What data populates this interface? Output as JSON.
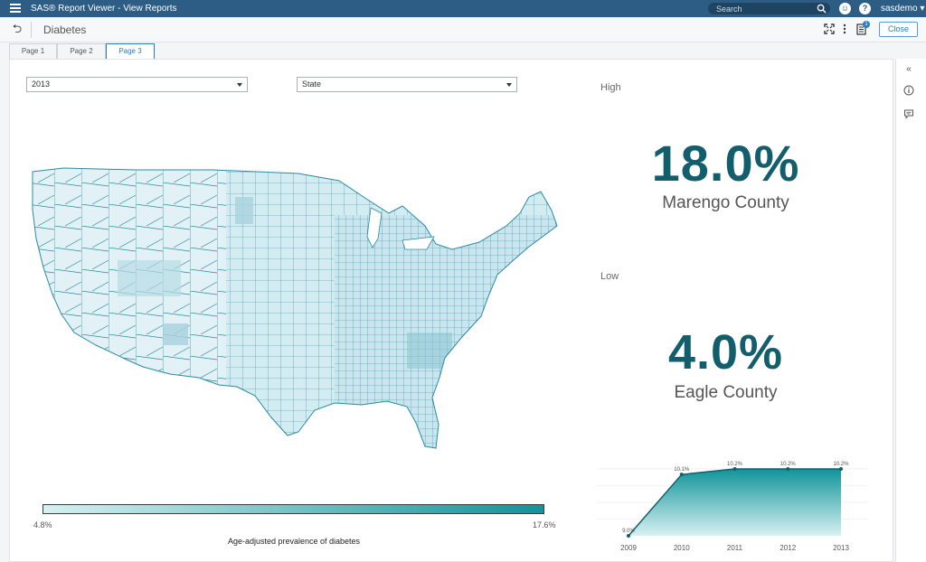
{
  "app": {
    "title": "SAS® Report Viewer - View Reports",
    "search_placeholder": "Search",
    "user": "sasdemo ▾"
  },
  "report": {
    "title": "Diabetes",
    "close_label": "Close",
    "notification_count": "1"
  },
  "tabs": [
    {
      "label": "Page 1"
    },
    {
      "label": "Page 2"
    },
    {
      "label": "Page 3"
    }
  ],
  "filters": {
    "year": "2013",
    "level": "State"
  },
  "map": {
    "legend_min": "4.8%",
    "legend_max": "17.6%",
    "legend_title": "Age-adjusted prevalence of diabetes",
    "colors": {
      "low": "#d7f1f1",
      "high": "#10949a",
      "border": "#2a8aa0"
    }
  },
  "kpi": {
    "high_label": "High",
    "high_value": "18.0%",
    "high_county": "Marengo County",
    "low_label": "Low",
    "low_value": "4.0%",
    "low_county": "Eagle County"
  },
  "chart_data": {
    "type": "area",
    "title": "",
    "categories": [
      "2009",
      "2010",
      "2011",
      "2012",
      "2013"
    ],
    "values": [
      9.0,
      10.1,
      10.2,
      10.2,
      10.2
    ],
    "data_labels": [
      "9.0%",
      "10.1%",
      "10.2%",
      "10.2%",
      "10.2%"
    ],
    "ylim": [
      9.0,
      10.2
    ],
    "xlabel": "",
    "ylabel": "",
    "color": "#10949a"
  }
}
